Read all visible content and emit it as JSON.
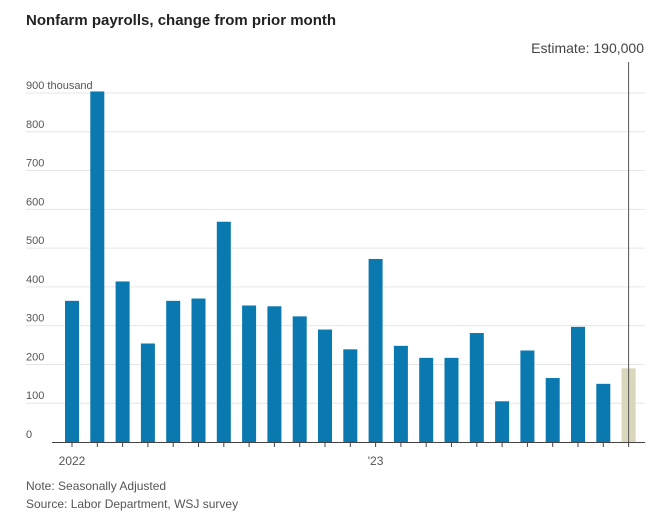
{
  "colors": {
    "bar": "#0a79b0",
    "estimate_bar": "#d9d6bb",
    "grid": "#e6e6e6",
    "axis": "#444444",
    "estimate_line": "#555555"
  },
  "chart_data": {
    "type": "bar",
    "title": "Nonfarm payrolls, change from prior month",
    "xlabel": "",
    "ylabel": "",
    "ylim": [
      0,
      900
    ],
    "grid": true,
    "y_ticks": [
      {
        "value": 0,
        "label": "0"
      },
      {
        "value": 100,
        "label": "100"
      },
      {
        "value": 200,
        "label": "200"
      },
      {
        "value": 300,
        "label": "300"
      },
      {
        "value": 400,
        "label": "400"
      },
      {
        "value": 500,
        "label": "500"
      },
      {
        "value": 600,
        "label": "600"
      },
      {
        "value": 700,
        "label": "700"
      },
      {
        "value": 800,
        "label": "800"
      },
      {
        "value": 900,
        "label": "900 thousand"
      }
    ],
    "x_tick_labels": [
      {
        "index": 0,
        "label": "2022"
      },
      {
        "index": 12,
        "label": "'23"
      }
    ],
    "values": [
      364,
      904,
      414,
      254,
      364,
      370,
      568,
      352,
      350,
      324,
      290,
      239,
      472,
      248,
      217,
      217,
      281,
      105,
      236,
      165,
      297,
      150,
      190
    ],
    "estimate": {
      "index": 22,
      "value": 190,
      "label": "Estimate: 190,000"
    }
  },
  "footer": {
    "note": "Note: Seasonally Adjusted",
    "source": "Source: Labor Department, WSJ survey"
  }
}
